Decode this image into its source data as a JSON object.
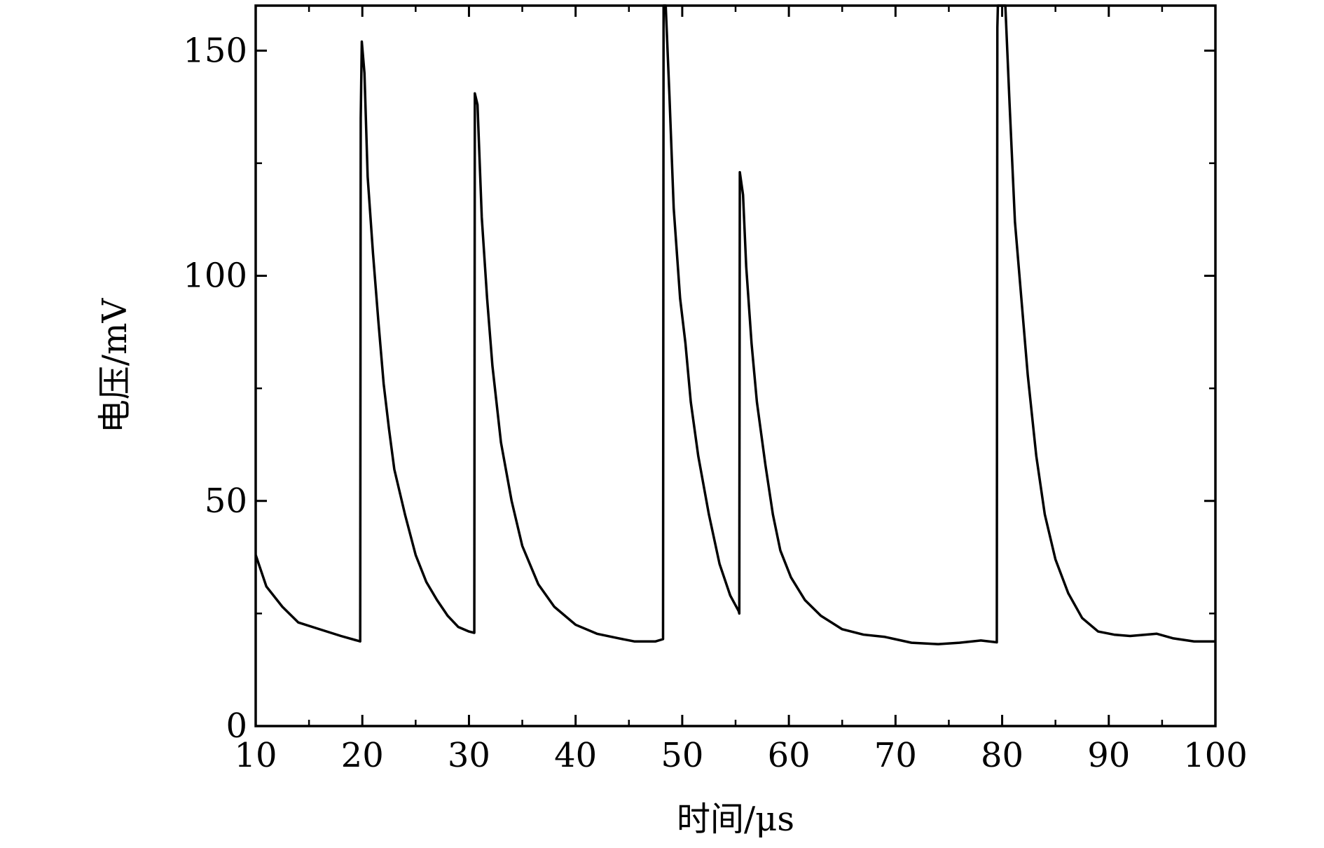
{
  "chart_data": {
    "type": "line",
    "title": "",
    "xlabel": "时间/μs",
    "ylabel": "电压/mV",
    "xlim": [
      10,
      100
    ],
    "ylim": [
      0,
      160
    ],
    "x_ticks": [
      10,
      20,
      30,
      40,
      50,
      60,
      70,
      80,
      90,
      100
    ],
    "x_tick_labels": [
      "10",
      "20",
      "30",
      "40",
      "50",
      "60",
      "70",
      "80",
      "90",
      "100"
    ],
    "y_ticks": [
      0,
      50,
      100,
      150
    ],
    "y_tick_labels": [
      "0",
      "50",
      "100",
      "150"
    ],
    "x_minor_step": 5,
    "y_minor_step": 25,
    "grid": false,
    "legend": "none",
    "line_color": "#000000",
    "series": [
      {
        "points": [
          [
            10.0,
            38
          ],
          [
            11.0,
            31
          ],
          [
            12.5,
            26.5
          ],
          [
            14.0,
            23
          ],
          [
            16.0,
            21.5
          ],
          [
            18.0,
            20
          ],
          [
            19.8,
            18.8
          ],
          [
            19.85,
            135
          ],
          [
            19.95,
            152
          ],
          [
            20.2,
            145
          ],
          [
            20.5,
            122
          ],
          [
            21.0,
            105
          ],
          [
            21.5,
            90
          ],
          [
            22.0,
            76
          ],
          [
            22.5,
            66
          ],
          [
            23.0,
            57
          ],
          [
            24.0,
            47
          ],
          [
            25.0,
            38
          ],
          [
            26.0,
            32
          ],
          [
            27.0,
            28
          ],
          [
            28.0,
            24.5
          ],
          [
            29.0,
            22
          ],
          [
            30.0,
            21
          ],
          [
            30.5,
            20.7
          ],
          [
            30.55,
            140.5
          ],
          [
            30.8,
            138
          ],
          [
            31.2,
            113
          ],
          [
            31.7,
            95
          ],
          [
            32.2,
            80
          ],
          [
            33.0,
            63
          ],
          [
            34.0,
            50
          ],
          [
            35.0,
            40
          ],
          [
            36.5,
            31.5
          ],
          [
            38.0,
            26.5
          ],
          [
            40.0,
            22.5
          ],
          [
            42.0,
            20.5
          ],
          [
            44.0,
            19.5
          ],
          [
            45.5,
            18.8
          ],
          [
            47.5,
            18.8
          ],
          [
            48.2,
            19.3
          ],
          [
            48.25,
            160
          ],
          [
            48.45,
            160
          ],
          [
            48.8,
            140
          ],
          [
            49.2,
            115
          ],
          [
            49.8,
            95
          ],
          [
            50.3,
            85
          ],
          [
            50.8,
            72
          ],
          [
            51.5,
            60
          ],
          [
            52.5,
            47
          ],
          [
            53.5,
            36
          ],
          [
            54.5,
            29
          ],
          [
            55.3,
            25.5
          ],
          [
            55.35,
            25
          ],
          [
            55.4,
            123
          ],
          [
            55.7,
            118
          ],
          [
            56.0,
            102
          ],
          [
            56.5,
            85
          ],
          [
            57.0,
            72
          ],
          [
            57.8,
            58
          ],
          [
            58.5,
            47
          ],
          [
            59.2,
            39
          ],
          [
            60.2,
            33
          ],
          [
            61.5,
            28
          ],
          [
            63.0,
            24.5
          ],
          [
            65.0,
            21.5
          ],
          [
            67.0,
            20.3
          ],
          [
            69.0,
            19.8
          ],
          [
            71.5,
            18.5
          ],
          [
            74.0,
            18.2
          ],
          [
            76.0,
            18.5
          ],
          [
            78.0,
            19
          ],
          [
            79.5,
            18.6
          ],
          [
            79.55,
            155
          ],
          [
            79.6,
            160
          ],
          [
            80.3,
            160
          ],
          [
            80.7,
            138
          ],
          [
            81.2,
            112
          ],
          [
            81.8,
            95
          ],
          [
            82.4,
            78
          ],
          [
            83.2,
            60
          ],
          [
            84.0,
            47
          ],
          [
            85.0,
            37
          ],
          [
            86.2,
            29.5
          ],
          [
            87.5,
            24
          ],
          [
            89.0,
            21
          ],
          [
            90.5,
            20.3
          ],
          [
            92.0,
            20
          ],
          [
            94.5,
            20.5
          ],
          [
            96.0,
            19.5
          ],
          [
            98.0,
            18.8
          ],
          [
            100.0,
            18.8
          ]
        ]
      }
    ]
  }
}
